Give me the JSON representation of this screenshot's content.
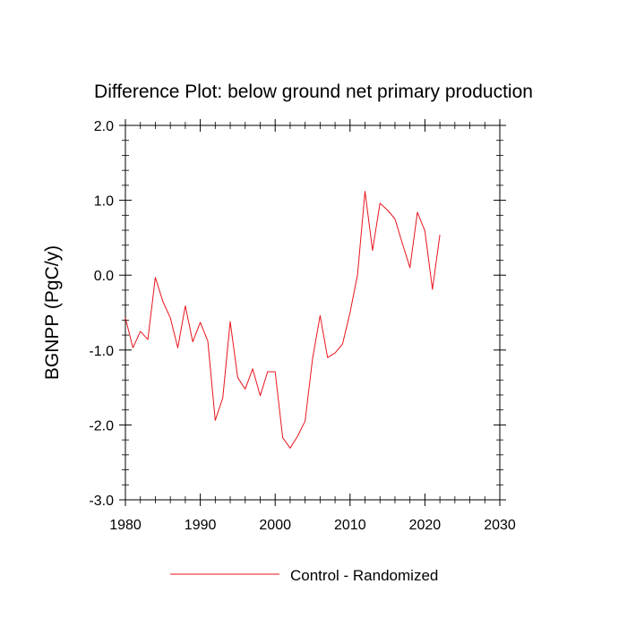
{
  "chart_data": {
    "type": "line",
    "title": "Difference Plot: below ground net primary production",
    "xlabel": "",
    "ylabel": "BGNPP  (PgC/y)",
    "xlim": [
      1980,
      2030
    ],
    "ylim": [
      -3.0,
      2.0
    ],
    "xticks": [
      1980,
      1990,
      2000,
      2010,
      2020,
      2030
    ],
    "xtick_labels": [
      "1980",
      "1990",
      "2000",
      "2010",
      "2020",
      "2030"
    ],
    "yticks": [
      -3.0,
      -2.0,
      -1.0,
      0.0,
      1.0,
      2.0
    ],
    "ytick_labels": [
      "-3.0",
      "-2.0",
      "-1.0",
      "0.0",
      "1.0",
      "2.0"
    ],
    "grid": false,
    "legend_position": "bottom-center",
    "series": [
      {
        "name": "Control - Randomized",
        "color": "#e8141c",
        "x": [
          1980,
          1981,
          1982,
          1983,
          1984,
          1985,
          1986,
          1987,
          1988,
          1989,
          1990,
          1991,
          1992,
          1993,
          1994,
          1995,
          1996,
          1997,
          1998,
          1999,
          2000,
          2001,
          2002,
          2003,
          2004,
          2005,
          2006,
          2007,
          2008,
          2009,
          2010,
          2011,
          2012,
          2013,
          2014,
          2015,
          2016,
          2017,
          2018,
          2019,
          2020,
          2021,
          2022
        ],
        "y": [
          -0.57,
          -0.97,
          -0.75,
          -0.86,
          -0.03,
          -0.35,
          -0.57,
          -0.97,
          -0.41,
          -0.89,
          -0.63,
          -0.88,
          -1.94,
          -1.64,
          -0.62,
          -1.37,
          -1.52,
          -1.25,
          -1.61,
          -1.29,
          -1.29,
          -2.17,
          -2.31,
          -2.15,
          -1.95,
          -1.11,
          -0.54,
          -1.1,
          -1.04,
          -0.92,
          -0.5,
          0.01,
          1.12,
          0.33,
          0.96,
          0.87,
          0.75,
          0.42,
          0.1,
          0.84,
          0.59,
          -0.19,
          0.54
        ]
      }
    ]
  }
}
